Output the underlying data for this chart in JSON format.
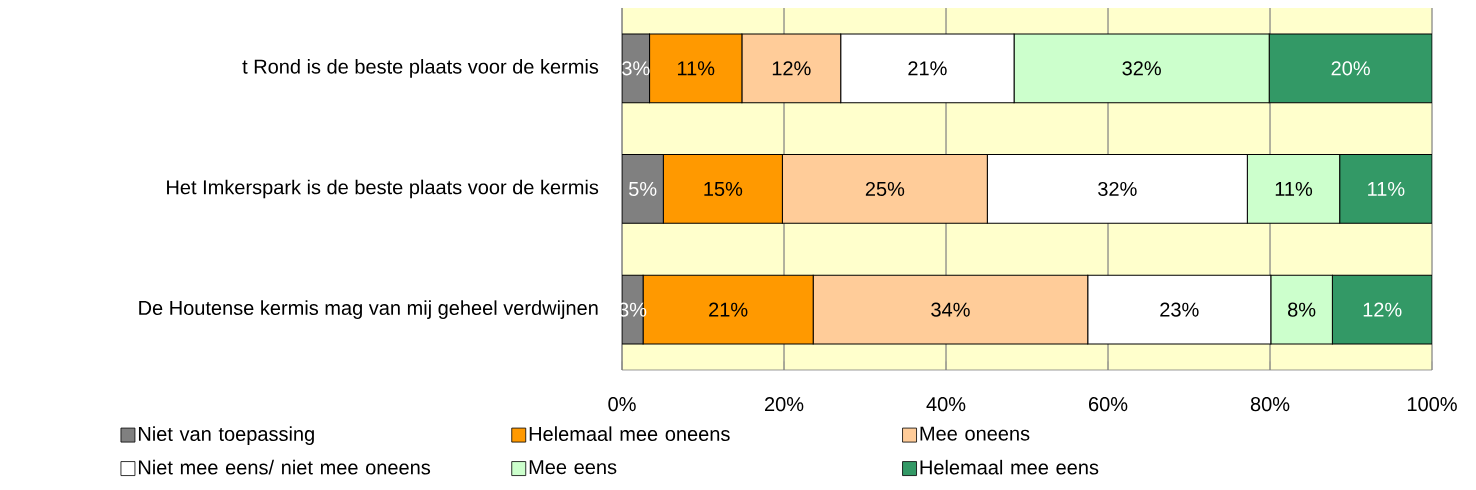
{
  "chart_data": {
    "type": "bar",
    "orientation": "horizontal",
    "stacked": true,
    "categories": [
      "t Rond is de beste plaats voor de kermis",
      "Het Imkerspark  is de beste plaats voor de kermis",
      "De Houtense kermis mag van mij geheel verdwijnen"
    ],
    "series": [
      {
        "name": "Niet van toepassing",
        "color": "#808080",
        "values": [
          3.4,
          5.1,
          2.6
        ],
        "value_labels": [
          "3%",
          "5%",
          "3%"
        ]
      },
      {
        "name": "Helemaal mee oneens",
        "color": "#ff9900",
        "values": [
          11.4,
          14.7,
          21
        ],
        "value_labels": [
          "11%",
          "15%",
          "21%"
        ]
      },
      {
        "name": "Mee oneens",
        "color": "#ffcc99",
        "values": [
          12.2,
          25.3,
          33.9
        ],
        "value_labels": [
          "12%",
          "25%",
          "34%"
        ]
      },
      {
        "name": "Niet mee eens/ niet mee oneens",
        "color": "#ffffff",
        "values": [
          21.4,
          32.1,
          22.6
        ],
        "value_labels": [
          "21%",
          "32%",
          "23%"
        ]
      },
      {
        "name": "Mee eens",
        "color": "#ccffcc",
        "values": [
          31.5,
          11.4,
          7.6
        ],
        "value_labels": [
          "32%",
          "11%",
          "8%"
        ]
      },
      {
        "name": "Helemaal mee eens",
        "color": "#339966",
        "values": [
          20.1,
          11.4,
          12.3
        ],
        "value_labels": [
          "20%",
          "11%",
          "12%"
        ]
      }
    ],
    "xlim": [
      0,
      100
    ],
    "xticks": [
      {
        "value": 0,
        "label": "0%"
      },
      {
        "value": 20,
        "label": "20%"
      },
      {
        "value": 40,
        "label": "40%"
      },
      {
        "value": 60,
        "label": "60%"
      },
      {
        "value": 80,
        "label": "80%"
      },
      {
        "value": 100,
        "label": "100%"
      }
    ],
    "grid": "x",
    "legend": "bottom"
  }
}
